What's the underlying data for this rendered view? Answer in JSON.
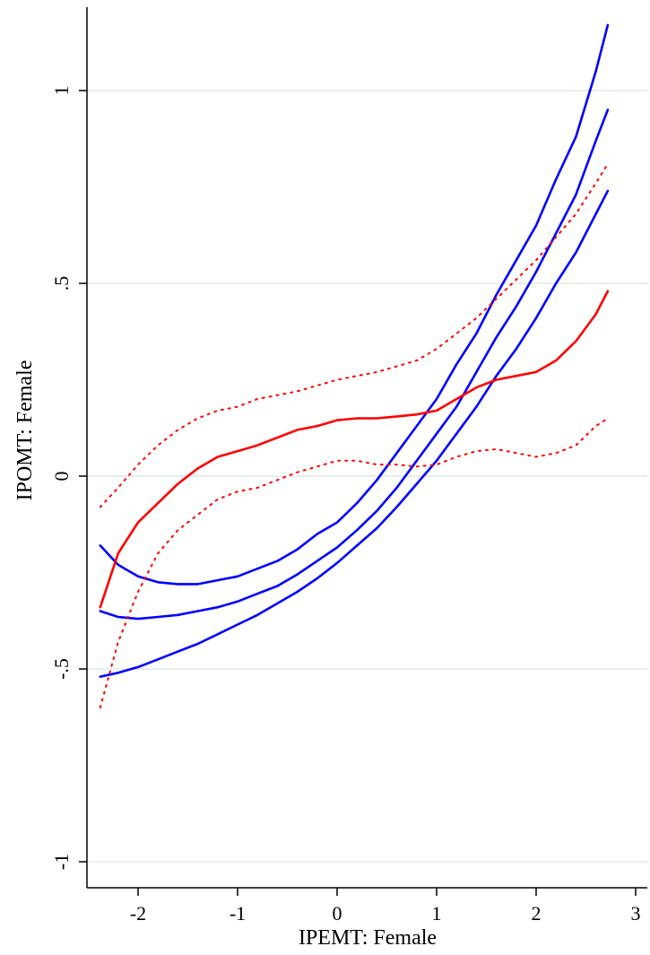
{
  "chart_data": {
    "type": "line",
    "xlabel": "IPEMT: Female",
    "ylabel": "IPOMT: Female",
    "xlim": [
      -2.5,
      3.1
    ],
    "ylim": [
      -1.05,
      1.2
    ],
    "x_ticks": [
      -2,
      -1,
      0,
      1,
      2,
      3
    ],
    "x_tick_labels": [
      "-2",
      "-1",
      "0",
      "1",
      "2",
      "3"
    ],
    "y_ticks": [
      -1,
      -0.5,
      0,
      0.5,
      1
    ],
    "y_tick_labels": [
      "-1",
      "-.5",
      "0",
      ".5",
      "1"
    ],
    "grid": "horizontal",
    "series": [
      {
        "color": "#0000ff",
        "style": "solid",
        "x": [
          -2.38,
          -2.2,
          -2.0,
          -1.8,
          -1.6,
          -1.4,
          -1.2,
          -1.0,
          -0.8,
          -0.6,
          -0.4,
          -0.2,
          0.0,
          0.2,
          0.4,
          0.6,
          0.8,
          1.0,
          1.2,
          1.4,
          1.6,
          1.8,
          2.0,
          2.2,
          2.4,
          2.6,
          2.72
        ],
        "y": [
          -0.18,
          -0.23,
          -0.26,
          -0.275,
          -0.28,
          -0.28,
          -0.27,
          -0.26,
          -0.24,
          -0.22,
          -0.19,
          -0.15,
          -0.12,
          -0.07,
          -0.01,
          0.06,
          0.13,
          0.2,
          0.29,
          0.37,
          0.47,
          0.56,
          0.65,
          0.77,
          0.88,
          1.05,
          1.17
        ]
      },
      {
        "color": "#0000ff",
        "style": "solid",
        "x": [
          -2.38,
          -2.2,
          -2.0,
          -1.8,
          -1.6,
          -1.4,
          -1.2,
          -1.0,
          -0.8,
          -0.6,
          -0.4,
          -0.2,
          0.0,
          0.2,
          0.4,
          0.6,
          0.8,
          1.0,
          1.2,
          1.4,
          1.6,
          1.8,
          2.0,
          2.2,
          2.4,
          2.6,
          2.72
        ],
        "y": [
          -0.35,
          -0.365,
          -0.37,
          -0.365,
          -0.36,
          -0.35,
          -0.34,
          -0.325,
          -0.305,
          -0.285,
          -0.255,
          -0.22,
          -0.185,
          -0.14,
          -0.09,
          -0.03,
          0.04,
          0.11,
          0.18,
          0.27,
          0.36,
          0.44,
          0.53,
          0.63,
          0.73,
          0.87,
          0.95
        ]
      },
      {
        "color": "#0000ff",
        "style": "solid",
        "x": [
          -2.38,
          -2.2,
          -2.0,
          -1.8,
          -1.6,
          -1.4,
          -1.2,
          -1.0,
          -0.8,
          -0.6,
          -0.4,
          -0.2,
          0.0,
          0.2,
          0.4,
          0.6,
          0.8,
          1.0,
          1.2,
          1.4,
          1.6,
          1.8,
          2.0,
          2.2,
          2.4,
          2.6,
          2.72
        ],
        "y": [
          -0.52,
          -0.51,
          -0.495,
          -0.475,
          -0.455,
          -0.435,
          -0.41,
          -0.385,
          -0.36,
          -0.33,
          -0.3,
          -0.265,
          -0.225,
          -0.18,
          -0.135,
          -0.08,
          -0.02,
          0.04,
          0.11,
          0.18,
          0.26,
          0.33,
          0.41,
          0.5,
          0.58,
          0.68,
          0.74
        ]
      },
      {
        "color": "#ff0000",
        "style": "solid",
        "x": [
          -2.38,
          -2.2,
          -2.0,
          -1.8,
          -1.6,
          -1.4,
          -1.2,
          -1.0,
          -0.8,
          -0.6,
          -0.4,
          -0.2,
          0.0,
          0.2,
          0.4,
          0.6,
          0.8,
          1.0,
          1.2,
          1.4,
          1.6,
          1.8,
          2.0,
          2.2,
          2.4,
          2.6,
          2.72
        ],
        "y": [
          -0.34,
          -0.2,
          -0.12,
          -0.07,
          -0.02,
          0.02,
          0.05,
          0.065,
          0.08,
          0.1,
          0.12,
          0.13,
          0.145,
          0.15,
          0.15,
          0.155,
          0.16,
          0.17,
          0.2,
          0.23,
          0.25,
          0.26,
          0.27,
          0.3,
          0.35,
          0.42,
          0.48
        ]
      },
      {
        "color": "#ff0000",
        "style": "dotted",
        "x": [
          -2.38,
          -2.2,
          -2.0,
          -1.8,
          -1.6,
          -1.4,
          -1.2,
          -1.0,
          -0.8,
          -0.6,
          -0.4,
          -0.2,
          0.0,
          0.2,
          0.4,
          0.6,
          0.8,
          1.0,
          1.2,
          1.4,
          1.6,
          1.8,
          2.0,
          2.2,
          2.4,
          2.6,
          2.72
        ],
        "y": [
          -0.08,
          -0.03,
          0.03,
          0.08,
          0.12,
          0.15,
          0.17,
          0.18,
          0.2,
          0.21,
          0.22,
          0.235,
          0.25,
          0.26,
          0.27,
          0.285,
          0.3,
          0.33,
          0.37,
          0.41,
          0.46,
          0.51,
          0.56,
          0.62,
          0.68,
          0.76,
          0.81
        ]
      },
      {
        "color": "#ff0000",
        "style": "dotted",
        "x": [
          -2.38,
          -2.2,
          -2.0,
          -1.8,
          -1.6,
          -1.4,
          -1.2,
          -1.0,
          -0.8,
          -0.6,
          -0.4,
          -0.2,
          0.0,
          0.2,
          0.4,
          0.6,
          0.8,
          1.0,
          1.2,
          1.4,
          1.6,
          1.8,
          2.0,
          2.2,
          2.4,
          2.6,
          2.72
        ],
        "y": [
          -0.6,
          -0.43,
          -0.3,
          -0.2,
          -0.14,
          -0.1,
          -0.06,
          -0.04,
          -0.03,
          -0.01,
          0.01,
          0.025,
          0.04,
          0.04,
          0.03,
          0.03,
          0.025,
          0.03,
          0.05,
          0.065,
          0.07,
          0.06,
          0.05,
          0.06,
          0.08,
          0.13,
          0.15
        ]
      }
    ]
  }
}
